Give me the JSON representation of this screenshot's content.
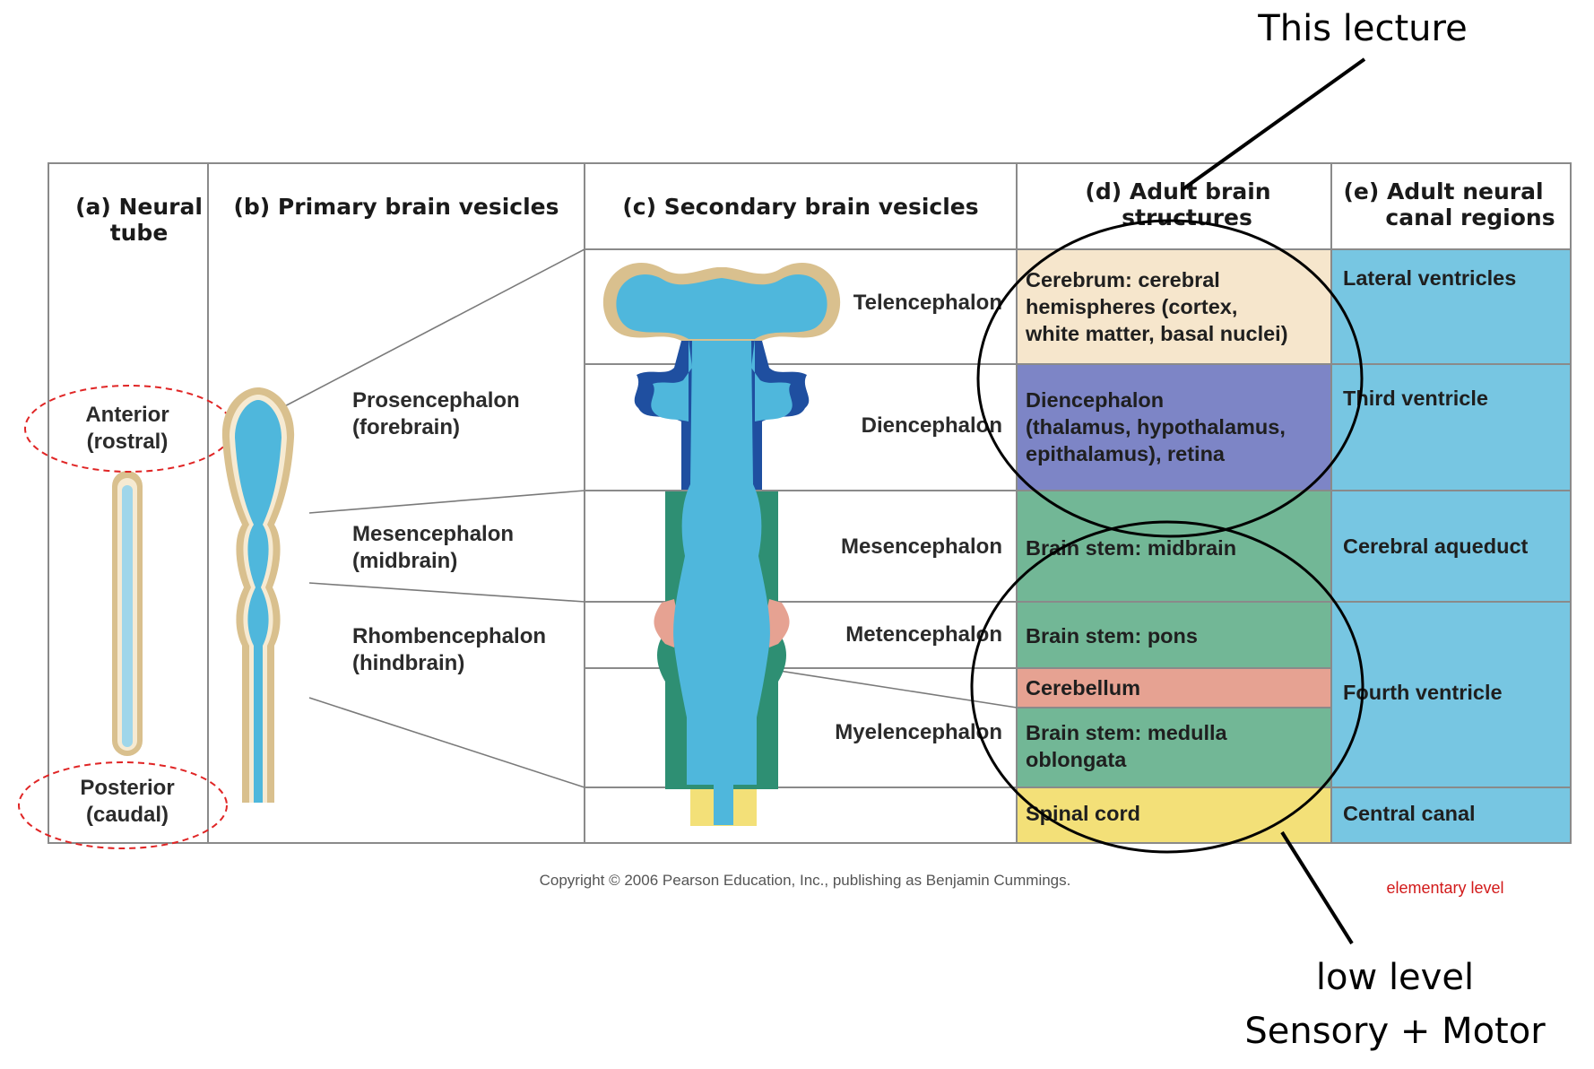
{
  "colors": {
    "cerebrum": "#f6e6cc",
    "diencephalon": "#7d85c6",
    "brainstem": "#72b796",
    "cerebellum": "#e6a292",
    "spinal": "#f3e078",
    "ventricle": "#77c6e2",
    "tissue_outline": "#d9c08e",
    "neural_blue": "#4fb7dc",
    "dark_blue": "#1f4fa0",
    "dark_green": "#2e8f73"
  },
  "headers": {
    "a": [
      "(a) Neural",
      "tube"
    ],
    "b": "(b) Primary brain vesicles",
    "c": "(c) Secondary brain vesicles",
    "d": [
      "(d) Adult brain",
      "structures"
    ],
    "e": [
      "(e) Adult neural",
      "canal regions"
    ]
  },
  "neural_tube": {
    "anterior": [
      "Anterior",
      "(rostral)"
    ],
    "posterior": [
      "Posterior",
      "(caudal)"
    ]
  },
  "primary_vesicles": [
    [
      "Prosencephalon",
      "(forebrain)"
    ],
    [
      "Mesencephalon",
      "(midbrain)"
    ],
    [
      "Rhombencephalon",
      "(hindbrain)"
    ]
  ],
  "secondary_vesicles": [
    "Telencephalon",
    "Diencephalon",
    "Mesencephalon",
    "Metencephalon",
    "Myelencephalon"
  ],
  "adult_structures": [
    [
      "Cerebrum: cerebral",
      "hemispheres (cortex,",
      "white matter, basal nuclei)"
    ],
    [
      "Diencephalon",
      "(thalamus, hypothalamus,",
      "epithalamus), retina"
    ],
    [
      "Brain stem: midbrain"
    ],
    [
      "Brain stem: pons"
    ],
    [
      "Cerebellum"
    ],
    [
      "Brain stem: medulla",
      "oblongata"
    ],
    [
      "Spinal cord"
    ]
  ],
  "canal_regions": [
    "Lateral ventricles",
    "Third ventricle",
    "Cerebral aqueduct",
    "Fourth ventricle",
    "Central canal"
  ],
  "copyright": "Copyright © 2006 Pearson Education, Inc., publishing as Benjamin Cummings.",
  "annotations": {
    "this_lecture": "This lecture",
    "low_level": [
      "low level",
      "Sensory + Motor"
    ],
    "elementary": "elementary level"
  }
}
